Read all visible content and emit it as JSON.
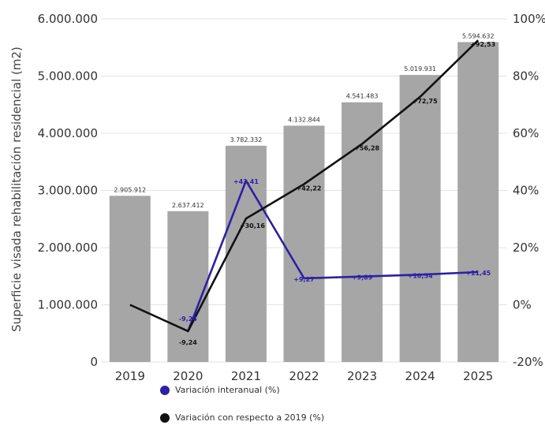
{
  "chart_data": {
    "type": "bar",
    "categories": [
      "2019",
      "2020",
      "2021",
      "2022",
      "2023",
      "2024",
      "2025"
    ],
    "values": [
      2905912,
      2637412,
      3782332,
      4132844,
      4541483,
      5019931,
      5594632
    ],
    "value_labels": [
      "2.905.912",
      "2.637.412",
      "3.782.332",
      "4.132.844",
      "4.541.483",
      "5.019.931",
      "5.594.632"
    ],
    "bar_color": "#a6a6a6",
    "ylabel": "Superficie visada rehabilitación residencial (m2)",
    "ylim": [
      0,
      6000000
    ],
    "yticks": [
      "0",
      "1.000.000",
      "2.000.000",
      "3.000.000",
      "4.000.000",
      "5.000.000",
      "6.000.000"
    ],
    "y2lim": [
      -20,
      100
    ],
    "y2ticks": [
      "-20%",
      "0%",
      "20%",
      "40%",
      "60%",
      "80%",
      "100%"
    ],
    "series": [
      {
        "name": "Variación interanual (%)",
        "color": "#2e1fa6",
        "values": [
          null,
          -9.24,
          43.41,
          9.27,
          9.89,
          10.54,
          11.45
        ],
        "labels": [
          "",
          "-9,24",
          "+43,41",
          "+9,27",
          "+9,89",
          "+10,54",
          "+11,45"
        ]
      },
      {
        "name": "Variación con respecto a 2019 (%)",
        "color": "#111111",
        "values": [
          0,
          -9.24,
          30.16,
          42.22,
          56.28,
          72.75,
          92.53
        ],
        "labels": [
          "",
          "-9,24",
          "+30,16",
          "+42,22",
          "+56,28",
          "+72,75",
          "+92,53"
        ]
      }
    ],
    "grid": true,
    "legend": "bottom"
  }
}
